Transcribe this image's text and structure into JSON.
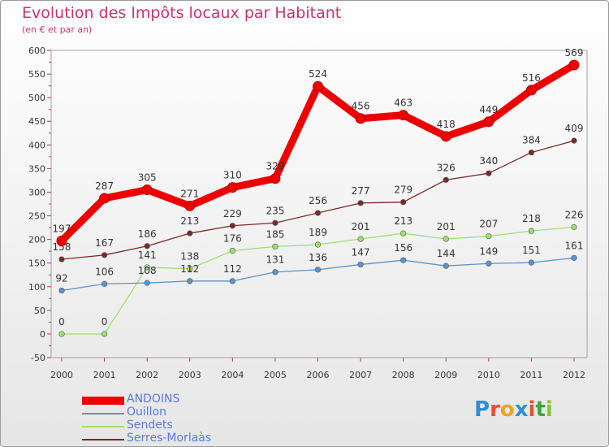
{
  "header": {
    "title": "Evolution des Impôts locaux par Habitant",
    "subtitle": "(en € et par an)"
  },
  "chart_data": {
    "type": "line",
    "x": [
      "2000",
      "2001",
      "2002",
      "2003",
      "2004",
      "2005",
      "2006",
      "2007",
      "2008",
      "2009",
      "2010",
      "2011",
      "2012"
    ],
    "ylim": [
      -50,
      600
    ],
    "yticks": [
      "600",
      "550",
      "500",
      "450",
      "400",
      "350",
      "300",
      "250",
      "200",
      "150",
      "100",
      "50",
      "0",
      "-50"
    ],
    "grid": false,
    "legend_position": "bottom-left",
    "series": [
      {
        "name": "ANDOINS",
        "color": "#ee0000",
        "values": [
          197,
          287,
          305,
          271,
          310,
          329,
          524,
          456,
          463,
          418,
          449,
          516,
          569
        ],
        "labels": [
          "197",
          "287",
          "305",
          "271",
          "310",
          "329",
          "524",
          "456",
          "463",
          "418",
          "449",
          "516",
          "569"
        ]
      },
      {
        "name": "Ouillon",
        "color": "#5b94c8",
        "values": [
          92,
          106,
          108,
          112,
          112,
          131,
          136,
          147,
          156,
          144,
          149,
          151,
          161
        ],
        "labels": [
          "92",
          "106",
          "108",
          "112",
          "112",
          "131",
          "136",
          "147",
          "156",
          "144",
          "149",
          "151",
          "161"
        ]
      },
      {
        "name": "Sendets",
        "color": "#9ee070",
        "values": [
          0,
          0,
          141,
          138,
          176,
          185,
          189,
          201,
          213,
          201,
          207,
          218,
          226
        ],
        "labels": [
          "0",
          "0",
          "141",
          "138",
          "176",
          "185",
          "189",
          "201",
          "213",
          "201",
          "207",
          "218",
          "226"
        ]
      },
      {
        "name": "Serres-Morlaàs",
        "color": "#7a2a2a",
        "values": [
          158,
          167,
          186,
          213,
          229,
          235,
          256,
          277,
          279,
          326,
          340,
          384,
          409
        ],
        "labels": [
          "158",
          "167",
          "186",
          "213",
          "229",
          "235",
          "256",
          "277",
          "279",
          "326",
          "340",
          "384",
          "409"
        ]
      }
    ]
  },
  "logo": {
    "text": "Proxiti",
    "colors": [
      "#2f8fd6",
      "#e5512b",
      "#f0a21e",
      "#2f8fd6",
      "#e5512b",
      "#3aa83a",
      "#8ac23a"
    ]
  }
}
